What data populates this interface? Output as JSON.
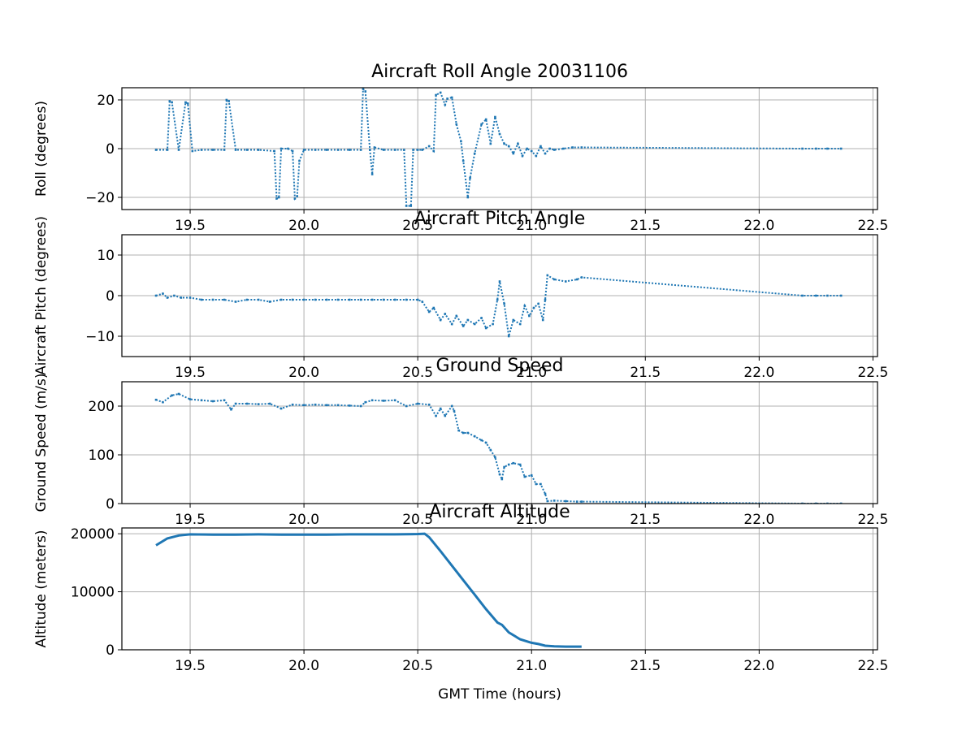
{
  "chart_data": [
    {
      "type": "scatter",
      "title": "Aircraft Roll Angle 20031106",
      "xlabel": "",
      "ylabel": "Roll (degrees)",
      "xlim": [
        19.2,
        22.52
      ],
      "ylim": [
        -25,
        25
      ],
      "xticks": [
        19.5,
        20.0,
        20.5,
        21.0,
        21.5,
        22.0,
        22.5
      ],
      "xtick_labels": [
        "19.5",
        "20.0",
        "20.5",
        "21.0",
        "21.5",
        "22.0",
        "22.5"
      ],
      "yticks": [
        -20,
        0,
        20
      ],
      "ytick_labels": [
        "−20",
        "0",
        "20"
      ],
      "grid": true,
      "x": [
        19.35,
        19.4,
        19.41,
        19.42,
        19.45,
        19.48,
        19.49,
        19.51,
        19.55,
        19.6,
        19.65,
        19.66,
        19.67,
        19.7,
        19.75,
        19.8,
        19.87,
        19.88,
        19.89,
        19.9,
        19.93,
        19.95,
        19.96,
        19.97,
        19.98,
        20.0,
        20.05,
        20.1,
        20.15,
        20.2,
        20.25,
        20.26,
        20.27,
        20.29,
        20.3,
        20.31,
        20.35,
        20.4,
        20.44,
        20.45,
        20.47,
        20.48,
        20.5,
        20.52,
        20.55,
        20.57,
        20.58,
        20.6,
        20.62,
        20.63,
        20.65,
        20.67,
        20.69,
        20.7,
        20.72,
        20.73,
        20.75,
        20.78,
        20.8,
        20.82,
        20.84,
        20.86,
        20.88,
        20.9,
        20.92,
        20.94,
        20.96,
        20.98,
        21.0,
        21.02,
        21.04,
        21.06,
        21.08,
        21.1,
        21.14,
        21.18,
        21.22,
        22.19,
        22.25,
        22.3,
        22.36
      ],
      "y": [
        -0.5,
        -0.5,
        19.5,
        19,
        -0.5,
        19,
        18.5,
        -1,
        -0.5,
        -0.5,
        -0.5,
        20,
        19.5,
        -0.5,
        -0.5,
        -0.5,
        -1,
        -20.5,
        -20,
        0,
        0,
        -1,
        -20.5,
        -19.5,
        -5,
        -0.5,
        -0.5,
        -0.5,
        -0.5,
        -0.5,
        -0.5,
        24.5,
        23.5,
        -0.5,
        -10.5,
        0.5,
        -0.5,
        -0.5,
        -0.5,
        -23.5,
        -23.5,
        -0.5,
        -0.5,
        -0.5,
        1,
        -1,
        22,
        23,
        18,
        20.5,
        21,
        10,
        3,
        -5,
        -20,
        -12,
        -2,
        10,
        12,
        2,
        13,
        6,
        2,
        1,
        -2,
        2,
        -3,
        0,
        -1,
        -3,
        1,
        -2,
        0,
        -0.5,
        0,
        0.5,
        0.5,
        0,
        0,
        0,
        0
      ]
    },
    {
      "type": "scatter",
      "title": "Aircraft Pitch Angle",
      "xlabel": "",
      "ylabel": "Aircraft Pitch (degrees)",
      "xlim": [
        19.2,
        22.52
      ],
      "ylim": [
        -15,
        15
      ],
      "xticks": [
        19.5,
        20.0,
        20.5,
        21.0,
        21.5,
        22.0,
        22.5
      ],
      "xtick_labels": [
        "19.5",
        "20.0",
        "20.5",
        "21.0",
        "21.5",
        "22.0",
        "22.5"
      ],
      "yticks": [
        -10,
        0,
        10
      ],
      "ytick_labels": [
        "−10",
        "0",
        "10"
      ],
      "grid": true,
      "x": [
        19.35,
        19.38,
        19.4,
        19.43,
        19.46,
        19.5,
        19.55,
        19.6,
        19.65,
        19.7,
        19.75,
        19.8,
        19.85,
        19.9,
        19.95,
        20.0,
        20.05,
        20.1,
        20.15,
        20.2,
        20.25,
        20.3,
        20.35,
        20.4,
        20.45,
        20.5,
        20.52,
        20.55,
        20.57,
        20.6,
        20.62,
        20.65,
        20.67,
        20.7,
        20.72,
        20.75,
        20.78,
        20.8,
        20.83,
        20.85,
        20.86,
        20.88,
        20.9,
        20.92,
        20.95,
        20.97,
        20.99,
        21.01,
        21.03,
        21.05,
        21.06,
        21.07,
        21.1,
        21.15,
        21.2,
        21.22,
        22.19,
        22.25,
        22.3,
        22.36
      ],
      "y": [
        0,
        0.5,
        -0.5,
        0,
        -0.5,
        -0.5,
        -1,
        -1,
        -1,
        -1.5,
        -1,
        -1,
        -1.5,
        -1,
        -1,
        -1,
        -1,
        -1,
        -1,
        -1,
        -1,
        -1,
        -1,
        -1,
        -1,
        -1,
        -1.5,
        -4,
        -3,
        -6,
        -4.5,
        -7,
        -5,
        -7.5,
        -6,
        -7,
        -5.5,
        -8,
        -7,
        -1,
        3.5,
        -2,
        -10,
        -6,
        -7,
        -2.5,
        -5,
        -3,
        -2,
        -6,
        -1,
        5,
        4,
        3.5,
        4,
        4.5,
        0,
        0,
        0,
        0
      ]
    },
    {
      "type": "scatter",
      "title": "Ground Speed",
      "xlabel": "",
      "ylabel": "Ground Speed (m/s)",
      "xlim": [
        19.2,
        22.52
      ],
      "ylim": [
        0,
        250
      ],
      "xticks": [
        19.5,
        20.0,
        20.5,
        21.0,
        21.5,
        22.0,
        22.5
      ],
      "xtick_labels": [
        "19.5",
        "20.0",
        "20.5",
        "21.0",
        "21.5",
        "22.0",
        "22.5"
      ],
      "yticks": [
        0,
        100,
        200
      ],
      "ytick_labels": [
        "0",
        "100",
        "200"
      ],
      "grid": true,
      "x": [
        19.35,
        19.38,
        19.42,
        19.45,
        19.5,
        19.55,
        19.6,
        19.65,
        19.68,
        19.7,
        19.75,
        19.8,
        19.85,
        19.9,
        19.95,
        20.0,
        20.05,
        20.1,
        20.15,
        20.2,
        20.25,
        20.27,
        20.3,
        20.35,
        20.4,
        20.45,
        20.5,
        20.55,
        20.58,
        20.6,
        20.62,
        20.65,
        20.66,
        20.68,
        20.7,
        20.72,
        20.75,
        20.78,
        20.8,
        20.82,
        20.84,
        20.86,
        20.87,
        20.88,
        20.9,
        20.92,
        20.95,
        20.97,
        21.0,
        21.02,
        21.04,
        21.06,
        21.07,
        21.1,
        21.15,
        21.2,
        21.22,
        22.19,
        22.25,
        22.3,
        22.36
      ],
      "y": [
        213,
        208,
        222,
        225,
        214,
        212,
        210,
        212,
        193,
        205,
        205,
        204,
        205,
        195,
        203,
        202,
        203,
        202,
        202,
        201,
        200,
        208,
        212,
        211,
        212,
        200,
        205,
        203,
        180,
        195,
        180,
        200,
        190,
        150,
        145,
        145,
        138,
        130,
        125,
        110,
        95,
        60,
        50,
        75,
        80,
        83,
        80,
        55,
        58,
        40,
        40,
        20,
        5,
        6,
        5,
        4,
        4,
        0,
        0,
        0,
        0
      ]
    },
    {
      "type": "line",
      "title": "Aircraft Altitude",
      "xlabel": "GMT Time (hours)",
      "ylabel": "Altitude (meters)",
      "xlim": [
        19.2,
        22.52
      ],
      "ylim": [
        0,
        21000
      ],
      "xticks": [
        19.5,
        20.0,
        20.5,
        21.0,
        21.5,
        22.0,
        22.5
      ],
      "xtick_labels": [
        "19.5",
        "20.0",
        "20.5",
        "21.0",
        "21.5",
        "22.0",
        "22.5"
      ],
      "yticks": [
        0,
        10000,
        20000
      ],
      "ytick_labels": [
        "0",
        "10000",
        "20000"
      ],
      "grid": true,
      "x": [
        19.35,
        19.4,
        19.45,
        19.5,
        19.6,
        19.7,
        19.8,
        19.9,
        20.0,
        20.1,
        20.2,
        20.3,
        20.4,
        20.5,
        20.53,
        20.55,
        20.6,
        20.65,
        20.7,
        20.75,
        20.8,
        20.85,
        20.87,
        20.9,
        20.95,
        21.0,
        21.03,
        21.06,
        21.1,
        21.15,
        21.2,
        21.22
      ],
      "y": [
        18000,
        19200,
        19700,
        19900,
        19850,
        19850,
        19900,
        19850,
        19850,
        19850,
        19900,
        19900,
        19900,
        19950,
        20000,
        19400,
        17000,
        14500,
        12000,
        9500,
        7000,
        4700,
        4300,
        3000,
        1800,
        1200,
        1000,
        700,
        600,
        550,
        550,
        550
      ]
    }
  ]
}
